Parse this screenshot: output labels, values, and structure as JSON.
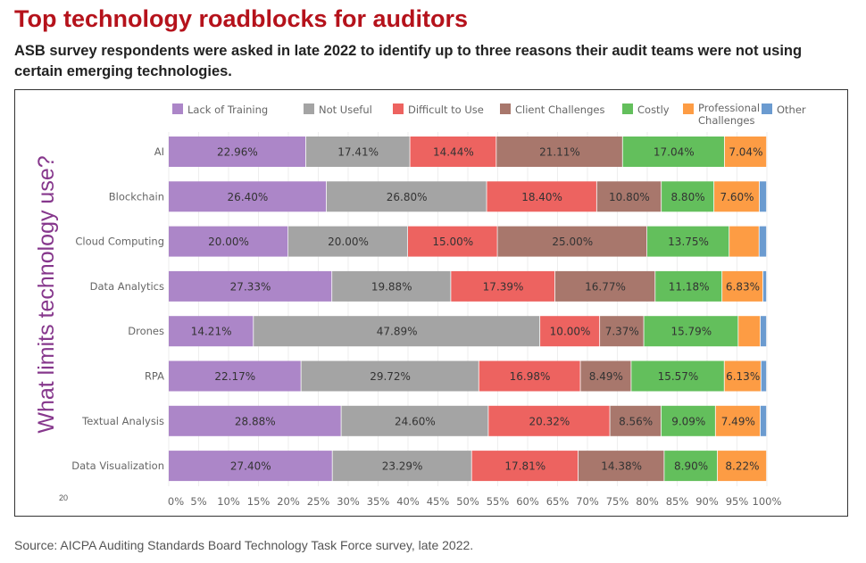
{
  "title": "Top technology roadblocks for auditors",
  "subtitle": "ASB survey respondents were asked in late 2022 to identify up to three reasons their audit teams were not using certain emerging technologies.",
  "source": "Source: AICPA Auditing Standards Board Technology Task Force survey, late 2022.",
  "page_marker": "20",
  "chart_data": {
    "type": "bar",
    "orientation": "horizontal-stacked-100",
    "ylabel": "What limits technology use?",
    "xlim": [
      0,
      100
    ],
    "xticks": [
      "0%",
      "5%",
      "10%",
      "15%",
      "20%",
      "25%",
      "30%",
      "35%",
      "40%",
      "45%",
      "50%",
      "55%",
      "60%",
      "65%",
      "70%",
      "75%",
      "80%",
      "85%",
      "90%",
      "95%",
      "100%"
    ],
    "legend_position": "top",
    "categories": [
      "AI",
      "Blockchain",
      "Cloud Computing",
      "Data Analytics",
      "Drones",
      "RPA",
      "Textual Analysis",
      "Data Visualization"
    ],
    "series": [
      {
        "name": "Lack of Training",
        "color": "#ac86c8",
        "values": [
          22.96,
          26.4,
          20.0,
          27.33,
          14.21,
          22.17,
          28.88,
          27.4
        ],
        "labels": [
          "22.96%",
          "26.40%",
          "20.00%",
          "27.33%",
          "14.21%",
          "22.17%",
          "28.88%",
          "27.40%"
        ]
      },
      {
        "name": "Not Useful",
        "color": "#a4a4a4",
        "values": [
          17.41,
          26.8,
          20.0,
          19.88,
          47.89,
          29.72,
          24.6,
          23.29
        ],
        "labels": [
          "17.41%",
          "26.80%",
          "20.00%",
          "19.88%",
          "47.89%",
          "29.72%",
          "24.60%",
          "23.29%"
        ]
      },
      {
        "name": "Difficult to Use",
        "color": "#ed6360",
        "values": [
          14.44,
          18.4,
          15.0,
          17.39,
          10.0,
          16.98,
          20.32,
          17.81
        ],
        "labels": [
          "14.44%",
          "18.40%",
          "15.00%",
          "17.39%",
          "10.00%",
          "16.98%",
          "20.32%",
          "17.81%"
        ]
      },
      {
        "name": "Client Challenges",
        "color": "#a8776c",
        "values": [
          21.11,
          10.8,
          25.0,
          16.77,
          7.37,
          8.49,
          8.56,
          14.38
        ],
        "labels": [
          "21.11%",
          "10.80%",
          "25.00%",
          "16.77%",
          "7.37%",
          "8.49%",
          "8.56%",
          "14.38%"
        ]
      },
      {
        "name": "Costly",
        "color": "#63bf5c",
        "values": [
          17.04,
          8.8,
          13.75,
          11.18,
          15.79,
          15.57,
          9.09,
          8.9
        ],
        "labels": [
          "17.04%",
          "8.80%",
          "13.75%",
          "11.18%",
          "15.79%",
          "15.57%",
          "9.09%",
          "8.90%"
        ]
      },
      {
        "name": "Professional Challenges",
        "color": "#fd9c44",
        "values": [
          7.04,
          7.6,
          5.0,
          6.83,
          3.69,
          6.13,
          7.49,
          8.22
        ],
        "labels": [
          "7.04%",
          "7.60%",
          "",
          "6.83%",
          "",
          "6.13%",
          "7.49%",
          "8.22%"
        ]
      },
      {
        "name": "Other",
        "color": "#6b9bd0",
        "values": [
          0,
          1.2,
          1.25,
          0.62,
          1.05,
          0.94,
          1.06,
          0
        ],
        "labels": [
          "",
          "",
          "",
          "",
          "",
          "",
          "",
          ""
        ]
      }
    ]
  }
}
